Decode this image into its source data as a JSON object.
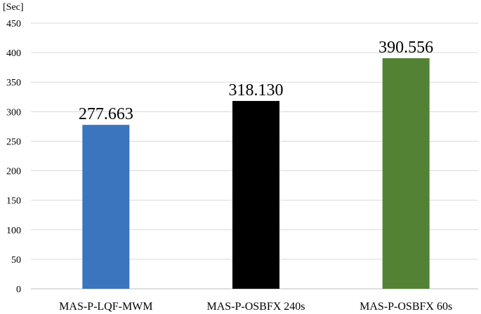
{
  "chart_data": {
    "type": "bar",
    "categories": [
      "MAS-P-LQF-MWM",
      "MAS-P-OSBFX 240s",
      "MAS-P-OSBFX 60s"
    ],
    "values": [
      277.663,
      318.13,
      390.556
    ],
    "data_labels": [
      "277.663",
      "318.130",
      "390.556"
    ],
    "colors": [
      "#3a75bd",
      "#000000",
      "#548235"
    ],
    "title": "",
    "xlabel": "",
    "ylabel": "[Sec]",
    "ylim": [
      0,
      450
    ],
    "yticks": [
      0,
      50,
      100,
      150,
      200,
      250,
      300,
      350,
      400,
      450
    ],
    "grid": true,
    "legend": "none"
  }
}
